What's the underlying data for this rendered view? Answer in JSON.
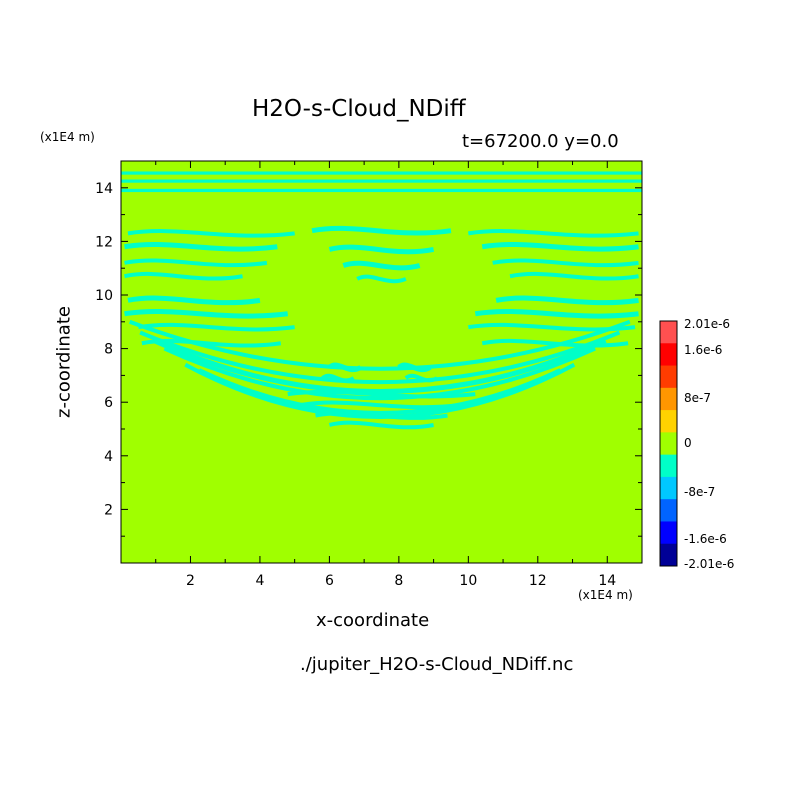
{
  "chart_data": {
    "type": "heatmap",
    "title": "H2O-s-Cloud_NDiff",
    "subtitle": "t=67200.0 y=0.0",
    "xlabel": "x-coordinate",
    "ylabel": "z-coordinate",
    "x_unit": "(x1E4 m)",
    "y_unit": "(x1E4 m)",
    "xlim": [
      0,
      15
    ],
    "ylim": [
      0,
      15
    ],
    "x_ticks": [
      2,
      4,
      6,
      8,
      10,
      12,
      14
    ],
    "y_ticks": [
      2,
      4,
      6,
      8,
      10,
      12,
      14
    ],
    "x_tick_labels": [
      "2",
      "4",
      "6",
      "8",
      "10",
      "12",
      "14"
    ],
    "y_tick_labels": [
      "2",
      "4",
      "6",
      "8",
      "10",
      "12",
      "14"
    ],
    "background_value": 0,
    "field_description": "Mostly 0; thin bands of small negative values (-8e-7 to 0) in a symmetric arch pattern between z=5 and z=12.5, plus horizontal bands near z=14-14.5",
    "colorbar": {
      "levels": [
        "-2.01e-6",
        "-1.6e-6",
        "-8e-7",
        "0",
        "8e-7",
        "1.6e-6",
        "2.01e-6"
      ],
      "colors": [
        "#000096",
        "#0000ff",
        "#0064ff",
        "#00c8ff",
        "#00ffc8",
        "#a0ff00",
        "#ffd200",
        "#ff9600",
        "#ff3c00",
        "#ff0000",
        "#ff5050"
      ],
      "background_color": "#a0ff00",
      "feature_color": "#00ffc8"
    },
    "source_file": "./jupiter_H2O-s-Cloud_NDiff.nc"
  }
}
